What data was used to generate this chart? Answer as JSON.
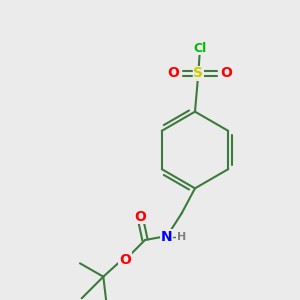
{
  "background_color": "#ebebeb",
  "bond_color": "#3d7a3d",
  "atom_colors": {
    "C": "#3d7a3d",
    "N": "#0000ff",
    "O": "#ff0000",
    "S": "#cccc00",
    "Cl": "#00bb00",
    "H": "#808080"
  },
  "bond_lw": 1.5,
  "font_size_atom": 9,
  "font_size_small": 8
}
